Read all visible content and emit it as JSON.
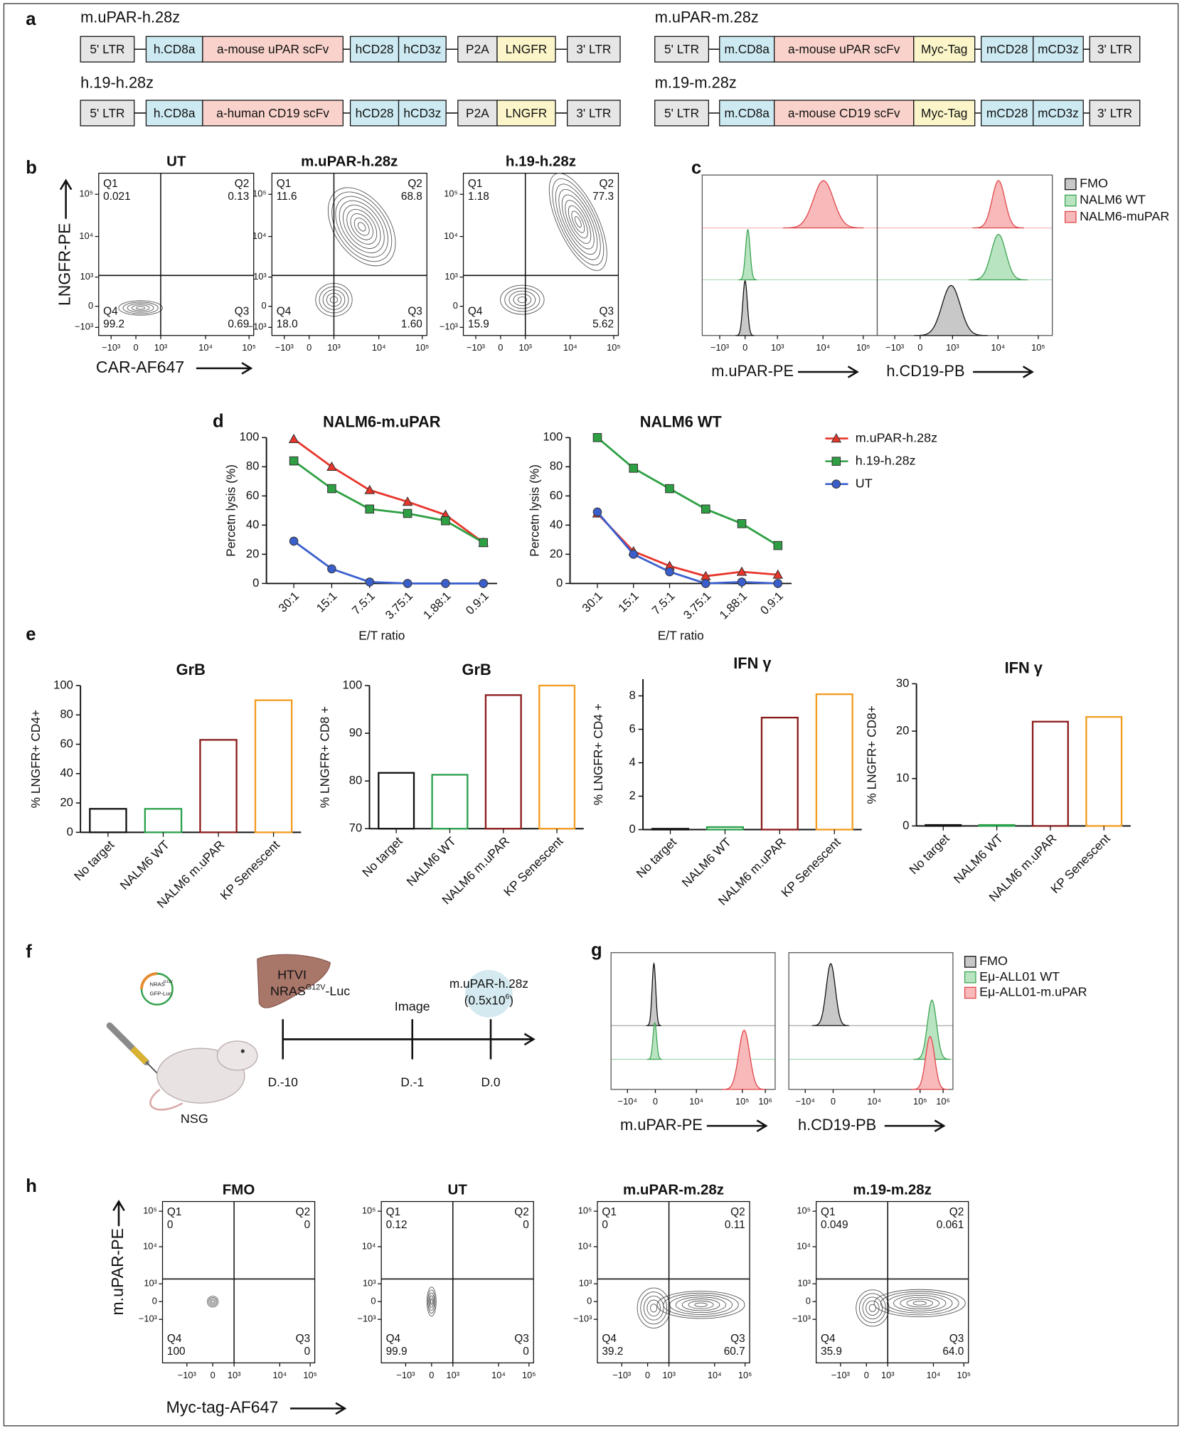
{
  "panel_letters": [
    "a",
    "b",
    "c",
    "d",
    "e",
    "f",
    "g",
    "h"
  ],
  "constructs": [
    {
      "name": "m.uPAR-h.28z",
      "segments": [
        {
          "text": "5' LTR",
          "color": "#e6e6e6"
        },
        {
          "text": "h.CD8a",
          "color": "#cdeaf2"
        },
        {
          "text": "a-mouse uPAR scFv",
          "color": "#f9d3cb"
        },
        {
          "text": "hCD28",
          "color": "#cdeaf2"
        },
        {
          "text": "hCD3z",
          "color": "#cdeaf2"
        },
        {
          "text": "P2A",
          "color": "#e6e6e6"
        },
        {
          "text": "LNGFR",
          "color": "#fbf5c9"
        },
        {
          "text": "3' LTR",
          "color": "#e6e6e6"
        }
      ]
    },
    {
      "name": "h.19-h.28z",
      "segments": [
        {
          "text": "5' LTR",
          "color": "#e6e6e6"
        },
        {
          "text": "h.CD8a",
          "color": "#cdeaf2"
        },
        {
          "text": "a-human CD19 scFv",
          "color": "#f9d3cb"
        },
        {
          "text": "hCD28",
          "color": "#cdeaf2"
        },
        {
          "text": "hCD3z",
          "color": "#cdeaf2"
        },
        {
          "text": "P2A",
          "color": "#e6e6e6"
        },
        {
          "text": "LNGFR",
          "color": "#fbf5c9"
        },
        {
          "text": "3' LTR",
          "color": "#e6e6e6"
        }
      ]
    },
    {
      "name": "m.uPAR-m.28z",
      "segments": [
        {
          "text": "5' LTR",
          "color": "#e6e6e6"
        },
        {
          "text": "m.CD8a",
          "color": "#cdeaf2"
        },
        {
          "text": "a-mouse uPAR scFv",
          "color": "#f9d3cb"
        },
        {
          "text": "Myc-Tag",
          "color": "#fbf5c9"
        },
        {
          "text": "mCD28",
          "color": "#cdeaf2"
        },
        {
          "text": "mCD3z",
          "color": "#cdeaf2"
        },
        {
          "text": "3' LTR",
          "color": "#e6e6e6"
        }
      ]
    },
    {
      "name": "m.19-m.28z",
      "segments": [
        {
          "text": "5' LTR",
          "color": "#e6e6e6"
        },
        {
          "text": "m.CD8a",
          "color": "#cdeaf2"
        },
        {
          "text": "a-mouse CD19 scFv",
          "color": "#f9d3cb"
        },
        {
          "text": "Myc-Tag",
          "color": "#fbf5c9"
        },
        {
          "text": "mCD28",
          "color": "#cdeaf2"
        },
        {
          "text": "mCD3z",
          "color": "#cdeaf2"
        },
        {
          "text": "3' LTR",
          "color": "#e6e6e6"
        }
      ]
    }
  ],
  "flow_b": {
    "y_label": "LNGFR-PE",
    "x_label": "CAR-AF647",
    "ticks": [
      "−10³",
      "0",
      "10³",
      "10⁴",
      "10⁵"
    ],
    "plots": [
      {
        "title": "UT",
        "quadrants": [
          {
            "name": "Q1",
            "value": "0.021"
          },
          {
            "name": "Q2",
            "value": "0.13"
          },
          {
            "name": "Q3",
            "value": "0.69"
          },
          {
            "name": "Q4",
            "value": "99.2"
          }
        ]
      },
      {
        "title": "m.uPAR-h.28z",
        "quadrants": [
          {
            "name": "Q1",
            "value": "11.6"
          },
          {
            "name": "Q2",
            "value": "68.8"
          },
          {
            "name": "Q3",
            "value": "1.60"
          },
          {
            "name": "Q4",
            "value": "18.0"
          }
        ]
      },
      {
        "title": "h.19-h.28z",
        "quadrants": [
          {
            "name": "Q1",
            "value": "1.18"
          },
          {
            "name": "Q2",
            "value": "77.3"
          },
          {
            "name": "Q3",
            "value": "5.62"
          },
          {
            "name": "Q4",
            "value": "15.9"
          }
        ]
      }
    ]
  },
  "hist_c": {
    "legend": [
      {
        "name": "FMO",
        "color": "#c8c8c8"
      },
      {
        "name": "NALM6 WT",
        "color": "#b9e4c1"
      },
      {
        "name": "NALM6-muPAR",
        "color": "#f7b9b9"
      }
    ],
    "x_labels": [
      "m.uPAR-PE",
      "h.CD19-PB"
    ],
    "ticks": [
      "−10³",
      "0",
      "10³",
      "10⁴",
      "10⁵"
    ]
  },
  "chart_data": [
    {
      "type": "line",
      "title": "NALM6-m.uPAR",
      "x_label": "E/T ratio",
      "y_label": "Percetn lysis (%)",
      "categories": [
        "30:1",
        "15:1",
        "7.5:1",
        "3.75:1",
        "1.88:1",
        "0.9:1"
      ],
      "ylim": [
        0,
        100
      ],
      "yticks": [
        0,
        20,
        40,
        60,
        80,
        100
      ],
      "series": [
        {
          "name": "m.uPAR-h.28z",
          "color": "#e8352a",
          "marker": "triangle",
          "values": [
            99,
            80,
            64,
            56,
            47,
            28
          ]
        },
        {
          "name": "h.19-h.28z",
          "color": "#2ea043",
          "marker": "square",
          "values": [
            84,
            65,
            51,
            48,
            43,
            28
          ]
        },
        {
          "name": "UT",
          "color": "#3a5fcd",
          "marker": "circle",
          "values": [
            29,
            10,
            1,
            0,
            0,
            0
          ]
        }
      ]
    },
    {
      "type": "line",
      "title": "NALM6 WT",
      "x_label": "E/T ratio",
      "y_label": "Percetn lysis (%)",
      "categories": [
        "30:1",
        "15:1",
        "7.5:1",
        "3.75:1",
        "1.88:1",
        "0.9:1"
      ],
      "ylim": [
        0,
        100
      ],
      "yticks": [
        0,
        20,
        40,
        60,
        80,
        100
      ],
      "series": [
        {
          "name": "m.uPAR-h.28z",
          "color": "#e8352a",
          "marker": "triangle",
          "values": [
            48,
            22,
            12,
            5,
            8,
            6
          ]
        },
        {
          "name": "h.19-h.28z",
          "color": "#2ea043",
          "marker": "square",
          "values": [
            100,
            79,
            65,
            51,
            41,
            26
          ]
        },
        {
          "name": "UT",
          "color": "#3a5fcd",
          "marker": "circle",
          "values": [
            49,
            20,
            8,
            0,
            1,
            0
          ]
        }
      ]
    },
    {
      "type": "bar",
      "title": "GrB",
      "y_label": "% LNGFR+ CD4+",
      "categories": [
        "No target",
        "NALM6 WT",
        "NALM6 m.uPAR",
        "KP Senescent"
      ],
      "values": [
        16,
        16,
        63,
        90
      ],
      "colors": [
        "#111111",
        "#2aa04a",
        "#8b1a1a",
        "#f39c1f"
      ],
      "ylim": [
        0,
        100
      ],
      "yticks": [
        0,
        20,
        40,
        60,
        80,
        100
      ]
    },
    {
      "type": "bar",
      "title": "GrB",
      "y_label": "% LNGFR+ CD8 +",
      "categories": [
        "No target",
        "NALM6 WT",
        "NALM6 m.uPAR",
        "KP Senescent"
      ],
      "values": [
        81.7,
        81.3,
        98,
        100
      ],
      "colors": [
        "#111111",
        "#2aa04a",
        "#8b1a1a",
        "#f39c1f"
      ],
      "ylim": [
        70,
        100
      ],
      "yticks": [
        70,
        80,
        90,
        100
      ]
    },
    {
      "type": "bar",
      "title": "IFN γ",
      "y_label": "% LNGFR+ CD4 +",
      "categories": [
        "No target",
        "NALM6 WT",
        "NALM6 m.uPAR",
        "KP Senescent"
      ],
      "values": [
        0.05,
        0.15,
        6.7,
        8.1
      ],
      "colors": [
        "#111111",
        "#2aa04a",
        "#8b1a1a",
        "#f39c1f"
      ],
      "ylim": [
        0,
        9
      ],
      "yticks": [
        0,
        2,
        4,
        6,
        8
      ]
    },
    {
      "type": "bar",
      "title": "IFN γ",
      "y_label": "% LNGFR+ CD8+",
      "categories": [
        "No target",
        "NALM6 WT",
        "NALM6 m.uPAR",
        "KP Senescent"
      ],
      "values": [
        0.2,
        0.2,
        22,
        23
      ],
      "colors": [
        "#111111",
        "#2aa04a",
        "#8b1a1a",
        "#f39c1f"
      ],
      "ylim": [
        0,
        30
      ],
      "yticks": [
        0,
        10,
        20,
        30
      ]
    }
  ],
  "schematic_f": {
    "plasmid": [
      "NRAS",
      "G12V",
      "GFP-Luc"
    ],
    "htvi": "HTVI",
    "nras": [
      "NRAS",
      "G12V",
      "-Luc"
    ],
    "image": "Image",
    "car": "m.uPAR-h.28z",
    "dose": [
      "(0.5x10",
      "6",
      ")"
    ],
    "mouse": "NSG",
    "days": [
      "D.-10",
      "D.-1",
      "D.0"
    ]
  },
  "hist_g": {
    "legend": [
      {
        "name": "FMO",
        "color": "#c8c8c8"
      },
      {
        "name": "Eμ-ALL01 WT",
        "color": "#b9e4c1"
      },
      {
        "name": "Eμ-ALL01-m.uPAR",
        "color": "#f7b9b9"
      }
    ],
    "x_labels": [
      "m.uPAR-PE",
      "h.CD19-PB"
    ],
    "ticks": [
      "−10⁴",
      "0",
      "10⁴",
      "10⁵",
      "10⁶"
    ]
  },
  "flow_h": {
    "y_label": "m.uPAR-PE",
    "x_label": "Myc-tag-AF647",
    "ticks": [
      "−10³",
      "0",
      "10³",
      "10⁴",
      "10⁵"
    ],
    "plots": [
      {
        "title": "FMO",
        "quadrants": [
          {
            "name": "Q1",
            "value": "0"
          },
          {
            "name": "Q2",
            "value": "0"
          },
          {
            "name": "Q3",
            "value": "0"
          },
          {
            "name": "Q4",
            "value": "100"
          }
        ]
      },
      {
        "title": "UT",
        "quadrants": [
          {
            "name": "Q1",
            "value": "0.12"
          },
          {
            "name": "Q2",
            "value": "0"
          },
          {
            "name": "Q3",
            "value": "0"
          },
          {
            "name": "Q4",
            "value": "99.9"
          }
        ]
      },
      {
        "title": "m.uPAR-m.28z",
        "quadrants": [
          {
            "name": "Q1",
            "value": "0"
          },
          {
            "name": "Q2",
            "value": "0.11"
          },
          {
            "name": "Q3",
            "value": "60.7"
          },
          {
            "name": "Q4",
            "value": "39.2"
          }
        ]
      },
      {
        "title": "m.19-m.28z",
        "quadrants": [
          {
            "name": "Q1",
            "value": "0.049"
          },
          {
            "name": "Q2",
            "value": "0.061"
          },
          {
            "name": "Q3",
            "value": "64.0"
          },
          {
            "name": "Q4",
            "value": "35.9"
          }
        ]
      }
    ]
  }
}
